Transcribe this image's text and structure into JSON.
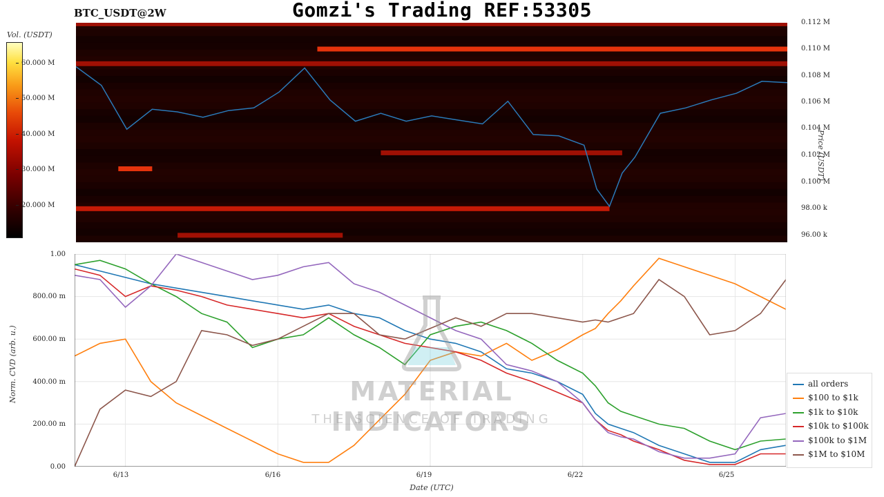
{
  "header": {
    "symbol": "BTC_USDT@2W",
    "title": "Gomzi's Trading REF:53305"
  },
  "colorbar": {
    "label": "Vol. (USDT)",
    "ticks": [
      "60.000 M",
      "50.000 M",
      "40.000 M",
      "30.000 M",
      "20.000 M"
    ]
  },
  "watermark": {
    "main": "MATERIAL INDICATORS",
    "sub": "THE SCIENCE OF TRADING"
  },
  "chart_data": [
    {
      "type": "heatmap",
      "title": "Gomzi's Trading REF:53305",
      "subtitle": "BTC_USDT@2W",
      "ylabel": "Price (USDT)",
      "ylim": [
        95500,
        112000
      ],
      "yticks": [
        "0.112 M",
        "0.110 M",
        "0.108 M",
        "0.106 M",
        "0.104 M",
        "0.102 M",
        "0.100 M",
        "98.00 k",
        "96.00 k"
      ],
      "colorbar": {
        "label": "Vol. (USDT)",
        "range": [
          0,
          65000000
        ]
      },
      "price_line": {
        "color": "#2a7ab9",
        "x": [
          "6/12 00:00",
          "6/12 12:00",
          "6/13 00:00",
          "6/13 12:00",
          "6/14 00:00",
          "6/14 12:00",
          "6/15 00:00",
          "6/15 12:00",
          "6/16 00:00",
          "6/16 12:00",
          "6/17 00:00",
          "6/17 12:00",
          "6/18 00:00",
          "6/18 12:00",
          "6/19 00:00",
          "6/19 12:00",
          "6/20 00:00",
          "6/20 12:00",
          "6/21 00:00",
          "6/21 12:00",
          "6/22 00:00",
          "6/22 06:00",
          "6/22 12:00",
          "6/22 18:00",
          "6/23 00:00",
          "6/23 12:00",
          "6/24 00:00",
          "6/24 12:00",
          "6/25 00:00",
          "6/25 12:00",
          "6/26 00:00"
        ],
        "y": [
          108700,
          107300,
          104000,
          105500,
          105300,
          104900,
          105400,
          105600,
          106800,
          108600,
          106200,
          104600,
          105200,
          104600,
          105000,
          104700,
          104400,
          106100,
          103600,
          103500,
          102800,
          99500,
          98200,
          100700,
          101900,
          105200,
          105600,
          106200,
          106700,
          107600,
          107500
        ]
      },
      "walls": [
        {
          "price": 111900,
          "start": "6/12",
          "end": "6/26",
          "intensity": 0.55
        },
        {
          "price": 110000,
          "start": "6/16 18:00",
          "end": "6/26",
          "intensity": 0.75
        },
        {
          "price": 108900,
          "start": "6/12",
          "end": "6/26",
          "intensity": 0.5
        },
        {
          "price": 102200,
          "start": "6/18",
          "end": "6/22 18:00",
          "intensity": 0.45
        },
        {
          "price": 101000,
          "start": "6/12 20:00",
          "end": "6/13 12:00",
          "intensity": 0.8
        },
        {
          "price": 98000,
          "start": "6/12",
          "end": "6/22 12:00",
          "intensity": 0.65
        },
        {
          "price": 96000,
          "start": "6/14",
          "end": "6/17 06:00",
          "intensity": 0.4
        }
      ]
    },
    {
      "type": "line",
      "xlabel": "Date (UTC)",
      "ylabel": "Norm. CVD (arb. u.)",
      "ylim": [
        0,
        1
      ],
      "yticks": [
        "1.00",
        "800.00 m",
        "600.00 m",
        "400.00 m",
        "200.00 m",
        "0.00"
      ],
      "xticks": [
        "6/13",
        "6/16",
        "6/19",
        "6/22",
        "6/25"
      ],
      "grid": true,
      "legend_position": "lower-right",
      "x": [
        "6/12 00:00",
        "6/12 12:00",
        "6/13 00:00",
        "6/13 12:00",
        "6/14 00:00",
        "6/14 12:00",
        "6/15 00:00",
        "6/15 12:00",
        "6/16 00:00",
        "6/16 12:00",
        "6/17 00:00",
        "6/17 12:00",
        "6/18 00:00",
        "6/18 12:00",
        "6/19 00:00",
        "6/19 12:00",
        "6/20 00:00",
        "6/20 12:00",
        "6/21 00:00",
        "6/21 12:00",
        "6/22 00:00",
        "6/22 06:00",
        "6/22 12:00",
        "6/22 18:00",
        "6/23 00:00",
        "6/23 12:00",
        "6/24 00:00",
        "6/24 12:00",
        "6/25 00:00",
        "6/25 12:00",
        "6/26 00:00"
      ],
      "series": [
        {
          "name": "all orders",
          "color": "#1f77b4",
          "values": [
            0.95,
            0.92,
            0.89,
            0.86,
            0.84,
            0.82,
            0.8,
            0.78,
            0.76,
            0.74,
            0.76,
            0.72,
            0.7,
            0.64,
            0.6,
            0.58,
            0.54,
            0.46,
            0.44,
            0.4,
            0.34,
            0.25,
            0.2,
            0.18,
            0.16,
            0.1,
            0.06,
            0.02,
            0.02,
            0.08,
            0.1
          ]
        },
        {
          "name": "$100 to $1k",
          "color": "#ff7f0e",
          "values": [
            0.52,
            0.58,
            0.6,
            0.4,
            0.3,
            0.24,
            0.18,
            0.12,
            0.06,
            0.02,
            0.02,
            0.1,
            0.22,
            0.34,
            0.5,
            0.54,
            0.52,
            0.58,
            0.5,
            0.55,
            0.62,
            0.65,
            0.72,
            0.78,
            0.85,
            0.98,
            0.94,
            0.9,
            0.86,
            0.8,
            0.74
          ]
        },
        {
          "name": "$1k to $10k",
          "color": "#2ca02c",
          "values": [
            0.95,
            0.97,
            0.93,
            0.86,
            0.8,
            0.72,
            0.68,
            0.56,
            0.6,
            0.62,
            0.7,
            0.62,
            0.56,
            0.48,
            0.62,
            0.66,
            0.68,
            0.64,
            0.58,
            0.5,
            0.44,
            0.38,
            0.3,
            0.26,
            0.24,
            0.2,
            0.18,
            0.12,
            0.08,
            0.12,
            0.13
          ]
        },
        {
          "name": "$10k to $100k",
          "color": "#d62728",
          "values": [
            0.93,
            0.9,
            0.8,
            0.85,
            0.83,
            0.8,
            0.76,
            0.74,
            0.72,
            0.7,
            0.72,
            0.66,
            0.62,
            0.58,
            0.56,
            0.54,
            0.5,
            0.44,
            0.4,
            0.35,
            0.3,
            0.22,
            0.17,
            0.15,
            0.12,
            0.08,
            0.03,
            0.01,
            0.01,
            0.06,
            0.06
          ]
        },
        {
          "name": "$100k to $1M",
          "color": "#9467bd",
          "values": [
            0.9,
            0.88,
            0.75,
            0.85,
            1.0,
            0.96,
            0.92,
            0.88,
            0.9,
            0.94,
            0.96,
            0.86,
            0.82,
            0.76,
            0.7,
            0.64,
            0.6,
            0.48,
            0.45,
            0.4,
            0.3,
            0.22,
            0.16,
            0.14,
            0.13,
            0.07,
            0.04,
            0.04,
            0.06,
            0.23,
            0.25
          ]
        },
        {
          "name": "$1M to $10M",
          "color": "#8c564b",
          "values": [
            0.0,
            0.27,
            0.36,
            0.33,
            0.4,
            0.64,
            0.62,
            0.57,
            0.6,
            0.66,
            0.72,
            0.72,
            0.62,
            0.6,
            0.65,
            0.7,
            0.66,
            0.72,
            0.72,
            0.7,
            0.68,
            0.69,
            0.68,
            0.7,
            0.72,
            0.88,
            0.8,
            0.62,
            0.64,
            0.72,
            0.88
          ]
        }
      ]
    }
  ]
}
